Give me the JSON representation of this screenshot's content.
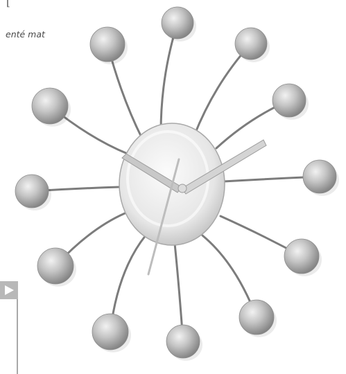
{
  "top_fragment": "[",
  "caption": "enté mat",
  "icons": {
    "play": "play-icon",
    "clock": "wall-clock-image"
  },
  "colors": {
    "background": "#ffffff",
    "ball": "#b5b5b5",
    "rod": "#8a8a8a",
    "dial": "#ececec",
    "hands": "#c9c9c9",
    "play_box": "#b8b8b8"
  }
}
